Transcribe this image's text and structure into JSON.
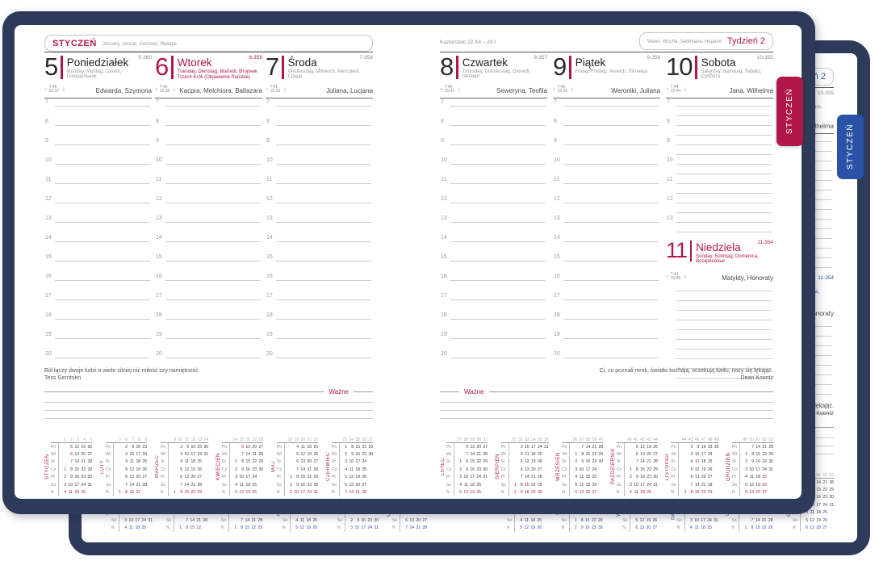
{
  "front_tab": "STYCZEŃ",
  "back_tab": "STYCZEŃ",
  "colors": {
    "frame": "#2e3a59",
    "accent_front": "#b01747",
    "accent_back": "#2b52a6"
  },
  "icons": {
    "sun": "○",
    "moon": "☽"
  },
  "left_header": {
    "month": "STYCZEŃ",
    "translations": "January, Januar, Gennaio, Январь"
  },
  "right_header": {
    "zodiac": "Koziorożec 22 XII – 20 I",
    "week_words": "Week, Woche, Settimana, Неделя",
    "week_label": "Tydzień 2"
  },
  "days": [
    {
      "num": "5",
      "name": "Poniedziałek",
      "doy": "5-360",
      "translations": "Monday, Montag, Lunedì, Понедельник",
      "namedays": "Edwarda, Szymona",
      "sunrise": "7:46",
      "sunset": "15:37",
      "holiday": false
    },
    {
      "num": "6",
      "name": "Wtorek",
      "doy": "6-359",
      "translations": "Tuesday, Dienstag, Martedì, Вторник",
      "extra": "Trzech Króli (Objawienie Pańskie)",
      "namedays": "Kacpra, Melchiora, Baltazara",
      "sunrise": "7:46",
      "sunset": "15:38",
      "holiday": true
    },
    {
      "num": "7",
      "name": "Środa",
      "doy": "7-358",
      "translations": "Wednesday, Mittwoch, Mercoledì, Среда",
      "namedays": "Juliana, Lucjana",
      "sunrise": "7:45",
      "sunset": "15:39",
      "holiday": false
    },
    {
      "num": "8",
      "name": "Czwartek",
      "doy": "8-357",
      "translations": "Thursday, Donnerstag, Giovedì, Четверг",
      "namedays": "Seweryna, Teofila",
      "sunrise": "7:45",
      "sunset": "15:41",
      "holiday": false
    },
    {
      "num": "9",
      "name": "Piątek",
      "doy": "9-356",
      "translations": "Friday, Freitag, Venerdì, Пятница",
      "namedays": "Weroniki, Juliana",
      "sunrise": "7:45",
      "sunset": "15:42",
      "holiday": false
    },
    {
      "num": "10",
      "name": "Sobota",
      "doy": "10-355",
      "translations": "Saturday, Samstag, Sabato, Суббота",
      "namedays": "Jana, Wilhelma",
      "sunrise": "7:44",
      "sunset": "15:44",
      "holiday": false
    },
    {
      "num": "11",
      "name": "Niedziela",
      "doy": "11-354",
      "translations": "Sunday, Sonntag, Domenica, Воскресенье",
      "namedays": "Matyldy, Honoraty",
      "sunrise": "7:44",
      "sunset": "15:45",
      "holiday": true
    }
  ],
  "quotes": {
    "left": {
      "text": "Ból łączy dwoje ludzi o wiele silniej niż miłość czy namiętność.",
      "author": "Tess Gerritsen"
    },
    "right": {
      "text": "Ci, co poznali mrok, światło kochają, oczekują świtu, nocy się lękając.",
      "author": "Dean Koontz"
    }
  },
  "important_label": "Ważne",
  "mini_day_labels": [
    "Pn",
    "Wt",
    "Śr",
    "Cz",
    "Pt",
    "So",
    "N"
  ],
  "mini_calendars": {
    "left": [
      {
        "name": "STYCZEŃ",
        "weeks": [
          1,
          2,
          3,
          4,
          5
        ],
        "red": [
          1,
          6
        ],
        "rows": [
          [
            null,
            5,
            12,
            19,
            26
          ],
          [
            null,
            6,
            13,
            20,
            27
          ],
          [
            null,
            7,
            14,
            21,
            28
          ],
          [
            1,
            8,
            15,
            22,
            29
          ],
          [
            2,
            9,
            16,
            23,
            30
          ],
          [
            3,
            10,
            17,
            24,
            31
          ],
          [
            4,
            11,
            18,
            25,
            null
          ]
        ]
      },
      {
        "name": "LUTY",
        "weeks": [
          5,
          6,
          7,
          8,
          9
        ],
        "red": [],
        "rows": [
          [
            null,
            2,
            9,
            16,
            23
          ],
          [
            null,
            3,
            10,
            17,
            24
          ],
          [
            null,
            4,
            11,
            18,
            25
          ],
          [
            null,
            5,
            12,
            19,
            26
          ],
          [
            null,
            6,
            13,
            20,
            27
          ],
          [
            null,
            7,
            14,
            21,
            28
          ],
          [
            1,
            8,
            15,
            22,
            null
          ]
        ]
      },
      {
        "name": "MARZEC",
        "weeks": [
          9,
          10,
          11,
          12,
          13,
          14
        ],
        "red": [],
        "rows": [
          [
            null,
            2,
            9,
            16,
            23,
            30
          ],
          [
            null,
            3,
            10,
            17,
            24,
            31
          ],
          [
            null,
            4,
            11,
            18,
            25,
            null
          ],
          [
            null,
            5,
            12,
            19,
            26,
            null
          ],
          [
            null,
            6,
            13,
            20,
            27,
            null
          ],
          [
            null,
            7,
            14,
            21,
            28,
            null
          ],
          [
            1,
            8,
            15,
            22,
            29,
            null
          ]
        ]
      },
      {
        "name": "KWIECIEŃ",
        "weeks": [
          14,
          15,
          16,
          17,
          18
        ],
        "red": [
          6
        ],
        "rows": [
          [
            null,
            6,
            13,
            20,
            27
          ],
          [
            null,
            7,
            14,
            21,
            28
          ],
          [
            1,
            8,
            15,
            22,
            29
          ],
          [
            2,
            9,
            16,
            23,
            30
          ],
          [
            3,
            10,
            17,
            24,
            null
          ],
          [
            4,
            11,
            18,
            25,
            null
          ],
          [
            5,
            12,
            19,
            26,
            null
          ]
        ]
      },
      {
        "name": "MAJ",
        "weeks": [
          18,
          19,
          20,
          21,
          22
        ],
        "red": [
          1
        ],
        "rows": [
          [
            null,
            4,
            11,
            18,
            25
          ],
          [
            null,
            5,
            12,
            19,
            26
          ],
          [
            null,
            6,
            13,
            20,
            27
          ],
          [
            null,
            7,
            14,
            21,
            28
          ],
          [
            1,
            8,
            15,
            22,
            29
          ],
          [
            2,
            9,
            16,
            23,
            30
          ],
          [
            3,
            10,
            17,
            24,
            31
          ]
        ]
      },
      {
        "name": "CZERWIEC",
        "weeks": [
          23,
          24,
          25,
          26,
          27
        ],
        "red": [
          4
        ],
        "rows": [
          [
            1,
            8,
            15,
            22,
            29
          ],
          [
            2,
            9,
            16,
            23,
            30
          ],
          [
            3,
            10,
            17,
            24,
            null
          ],
          [
            4,
            11,
            18,
            25,
            null
          ],
          [
            5,
            12,
            19,
            26,
            null
          ],
          [
            6,
            13,
            20,
            27,
            null
          ],
          [
            7,
            14,
            21,
            28,
            null
          ]
        ]
      }
    ],
    "right": [
      {
        "name": "LIPIEC",
        "weeks": [
          27,
          28,
          29,
          30,
          31
        ],
        "red": [],
        "rows": [
          [
            null,
            6,
            13,
            20,
            27
          ],
          [
            null,
            7,
            14,
            21,
            28
          ],
          [
            1,
            8,
            15,
            22,
            29
          ],
          [
            2,
            9,
            16,
            23,
            30
          ],
          [
            3,
            10,
            17,
            24,
            31
          ],
          [
            4,
            11,
            18,
            25,
            null
          ],
          [
            5,
            12,
            19,
            26,
            null
          ]
        ]
      },
      {
        "name": "SIERPIEŃ",
        "weeks": [
          31,
          32,
          33,
          34,
          35,
          36
        ],
        "red": [
          15
        ],
        "rows": [
          [
            null,
            3,
            10,
            17,
            24,
            31
          ],
          [
            null,
            4,
            11,
            18,
            25,
            null
          ],
          [
            null,
            5,
            12,
            19,
            26,
            null
          ],
          [
            null,
            6,
            13,
            20,
            27,
            null
          ],
          [
            null,
            7,
            14,
            21,
            28,
            null
          ],
          [
            1,
            8,
            15,
            22,
            29,
            null
          ],
          [
            2,
            9,
            16,
            23,
            30,
            null
          ]
        ]
      },
      {
        "name": "WRZESIEŃ",
        "weeks": [
          36,
          37,
          38,
          39,
          40
        ],
        "red": [],
        "rows": [
          [
            null,
            7,
            14,
            21,
            28
          ],
          [
            1,
            8,
            15,
            22,
            29
          ],
          [
            2,
            9,
            16,
            23,
            30
          ],
          [
            3,
            10,
            17,
            24,
            null
          ],
          [
            4,
            11,
            18,
            25,
            null
          ],
          [
            5,
            12,
            19,
            26,
            null
          ],
          [
            6,
            13,
            20,
            27,
            null
          ]
        ]
      },
      {
        "name": "PAŹDZIERNIK",
        "weeks": [
          40,
          41,
          42,
          43,
          44
        ],
        "red": [],
        "rows": [
          [
            null,
            5,
            12,
            19,
            26
          ],
          [
            null,
            6,
            13,
            20,
            27
          ],
          [
            null,
            7,
            14,
            21,
            28
          ],
          [
            1,
            8,
            15,
            22,
            29
          ],
          [
            2,
            9,
            16,
            23,
            30
          ],
          [
            3,
            10,
            17,
            24,
            31
          ],
          [
            4,
            11,
            18,
            25,
            null
          ]
        ]
      },
      {
        "name": "LISTOPAD",
        "weeks": [
          44,
          45,
          46,
          47,
          48,
          49
        ],
        "red": [
          11
        ],
        "rows": [
          [
            null,
            2,
            9,
            16,
            23,
            30
          ],
          [
            null,
            3,
            10,
            17,
            24,
            null
          ],
          [
            null,
            4,
            11,
            18,
            25,
            null
          ],
          [
            null,
            5,
            12,
            19,
            26,
            null
          ],
          [
            null,
            6,
            13,
            20,
            27,
            null
          ],
          [
            null,
            7,
            14,
            21,
            28,
            null
          ],
          [
            1,
            8,
            15,
            22,
            29,
            null
          ]
        ]
      },
      {
        "name": "GRUDZIEŃ",
        "weeks": [
          49,
          50,
          51,
          52,
          53
        ],
        "red": [
          25,
          26
        ],
        "rows": [
          [
            null,
            7,
            14,
            21,
            28
          ],
          [
            1,
            8,
            15,
            22,
            29
          ],
          [
            2,
            9,
            16,
            23,
            30
          ],
          [
            3,
            10,
            17,
            24,
            31
          ],
          [
            4,
            11,
            18,
            25,
            null
          ],
          [
            5,
            12,
            19,
            26,
            null
          ],
          [
            6,
            13,
            20,
            27,
            null
          ]
        ]
      }
    ]
  }
}
